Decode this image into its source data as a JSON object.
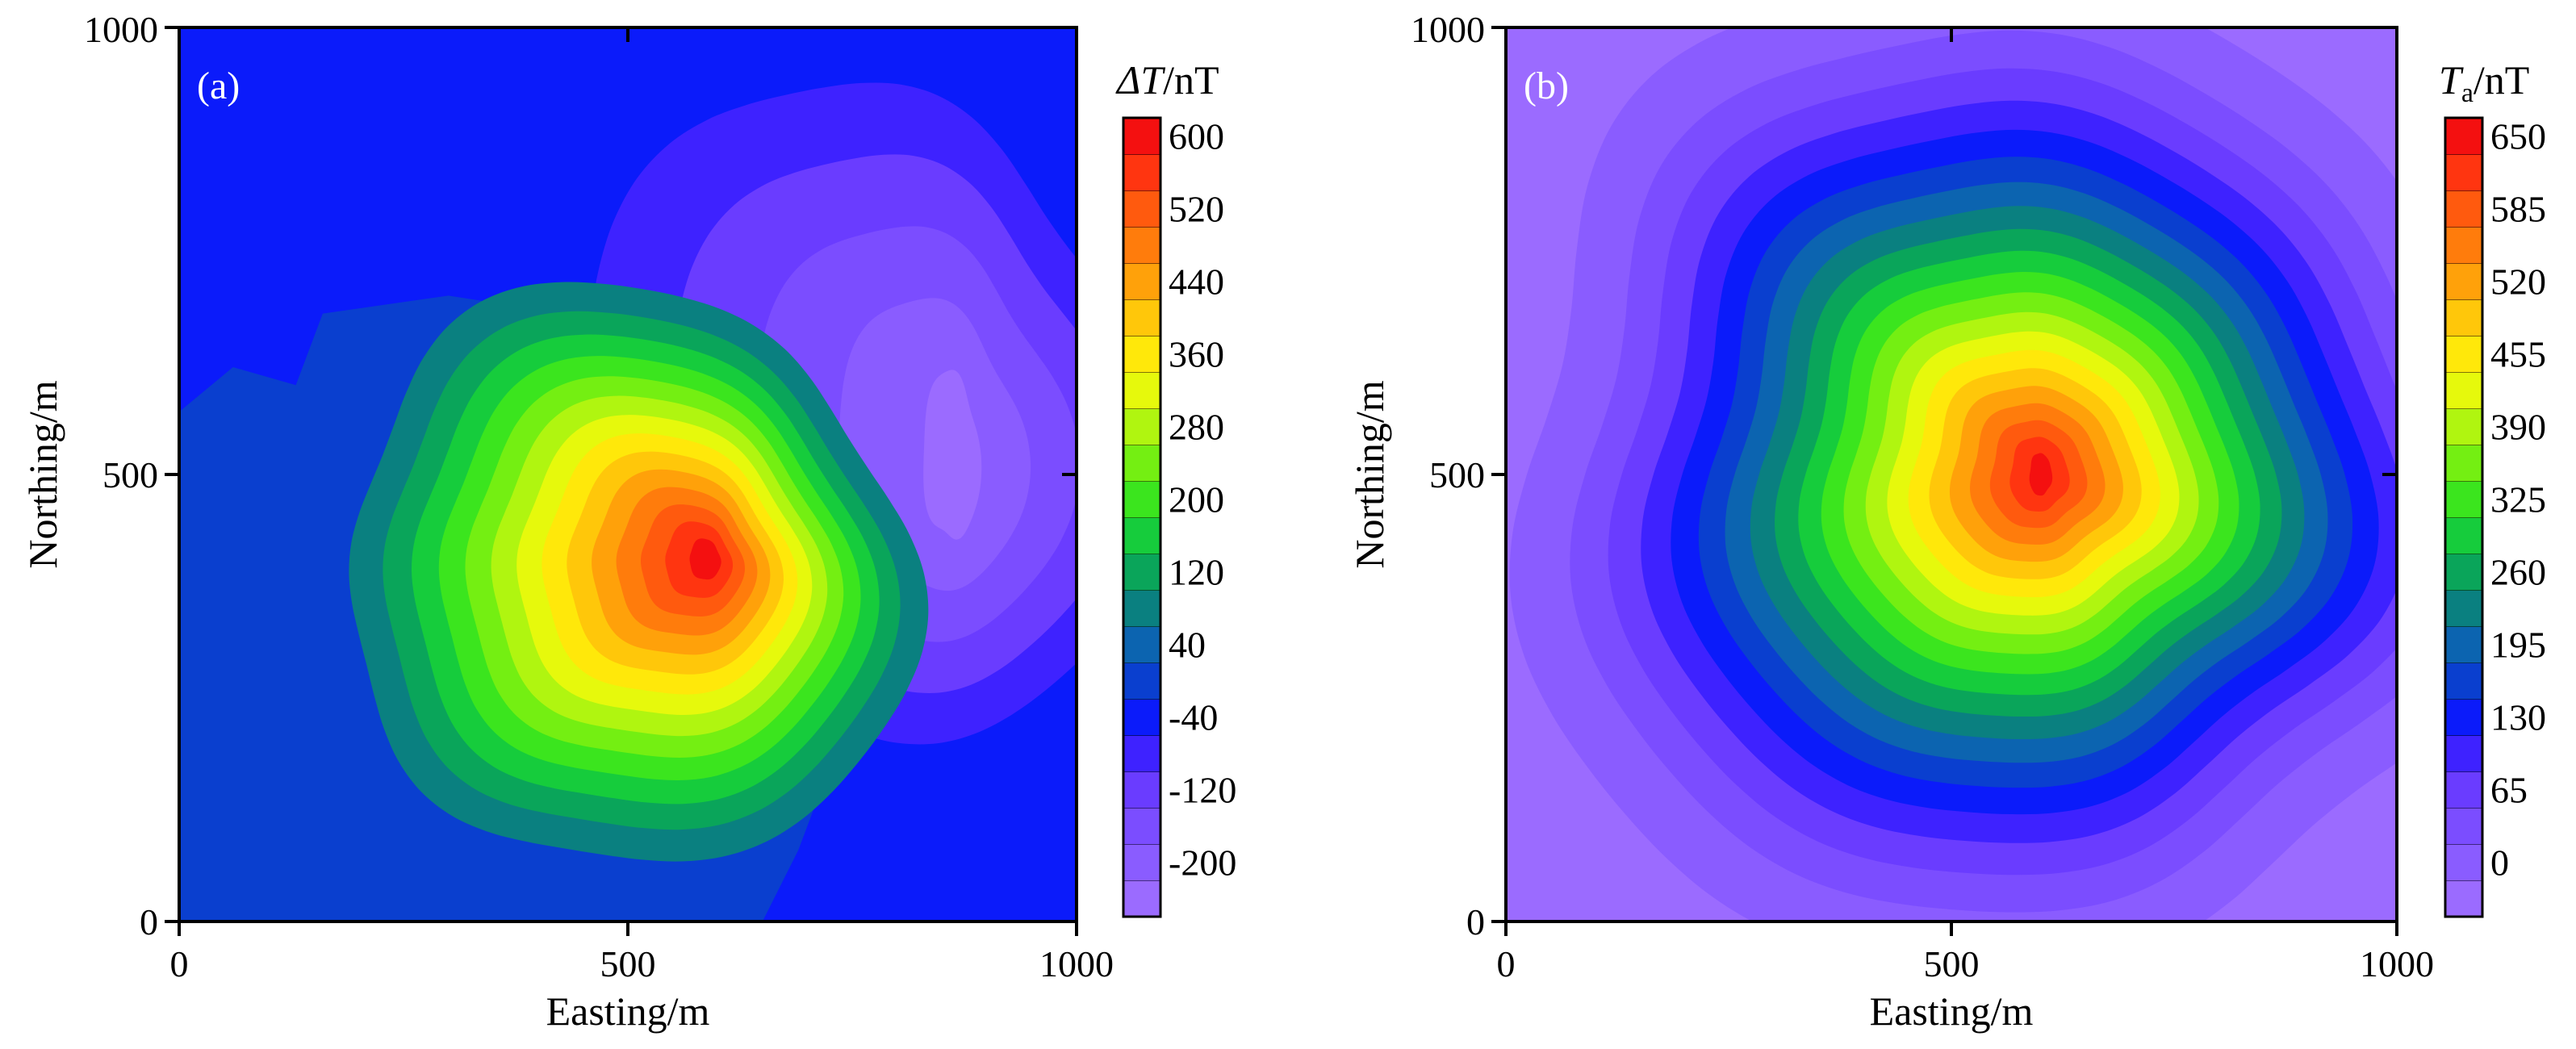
{
  "chart_data": [
    {
      "type": "heatmap",
      "panel_label": "(a)",
      "xlabel": "Easting/m",
      "ylabel": "Northing/m",
      "xlim": [
        0,
        1000
      ],
      "ylim": [
        0,
        1000
      ],
      "x_ticks": [
        "0",
        "500",
        "1000"
      ],
      "y_ticks": [
        "0",
        "500",
        "1000"
      ],
      "colorbar": {
        "title_symbol": "ΔT",
        "title_unit": "/nT",
        "levels": [
          -200,
          -160,
          -120,
          -80,
          -40,
          0,
          40,
          80,
          120,
          160,
          200,
          240,
          280,
          320,
          360,
          400,
          440,
          480,
          520,
          560,
          600,
          640
        ],
        "tick_labels": [
          "600",
          "520",
          "440",
          "360",
          "280",
          "200",
          "120",
          "40",
          "-40",
          "-120",
          "-200"
        ],
        "colors": [
          "#9b6bff",
          "#8a5cff",
          "#7b4dff",
          "#6a3cff",
          "#3e22ff",
          "#0b1bfa",
          "#0a3fcf",
          "#0c64b0",
          "#0a8080",
          "#0aa55a",
          "#16cc3c",
          "#3be51e",
          "#74ef12",
          "#b0f510",
          "#e6f90c",
          "#ffe80a",
          "#ffc70a",
          "#ffa10a",
          "#ff7c0c",
          "#ff5a0e",
          "#ff3510",
          "#f41010"
        ]
      },
      "features": [
        {
          "kind": "positive_peak",
          "x": 585,
          "y": 400,
          "value": 610
        },
        {
          "kind": "negative_lobe",
          "x": 855,
          "y": 520,
          "value": -190
        }
      ]
    },
    {
      "type": "heatmap",
      "panel_label": "(b)",
      "xlabel": "Easting/m",
      "ylabel": "Northing/m",
      "xlim": [
        0,
        1000
      ],
      "ylim": [
        0,
        1000
      ],
      "x_ticks": [
        "0",
        "500",
        "1000"
      ],
      "y_ticks": [
        "0",
        "500",
        "1000"
      ],
      "colorbar": {
        "title_symbol": "T",
        "title_subscript": "a",
        "title_unit": "/nT",
        "levels": [
          0,
          32.5,
          65,
          97.5,
          130,
          162.5,
          195,
          227.5,
          260,
          292.5,
          325,
          357.5,
          390,
          422.5,
          455,
          487.5,
          520,
          552.5,
          585,
          617.5,
          650,
          682.5
        ],
        "tick_labels": [
          "650",
          "585",
          "520",
          "455",
          "390",
          "325",
          "260",
          "195",
          "130",
          "65",
          "0"
        ],
        "colors": [
          "#9b6bff",
          "#8a5cff",
          "#7b4dff",
          "#6a3cff",
          "#3e22ff",
          "#0b1bfa",
          "#0a3fcf",
          "#0c64b0",
          "#0a8080",
          "#0aa55a",
          "#16cc3c",
          "#3be51e",
          "#74ef12",
          "#b0f510",
          "#e6f90c",
          "#ffe80a",
          "#ffc70a",
          "#ffa10a",
          "#ff7c0c",
          "#ff5a0e",
          "#ff3510",
          "#f41010"
        ]
      },
      "features": [
        {
          "kind": "positive_peak",
          "x": 600,
          "y": 500,
          "value": 690
        }
      ]
    }
  ]
}
